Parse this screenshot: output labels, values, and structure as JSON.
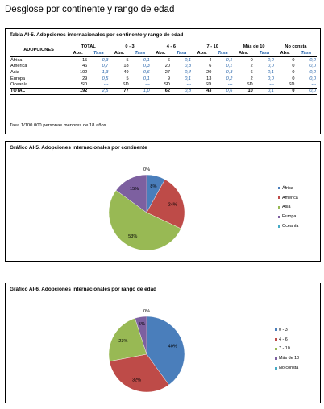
{
  "page_title": "Desglose por continente y rango de edad",
  "table": {
    "title": "Tabla AI-5. Adopciones internacionales por continente y rango de edad",
    "row_header": "ADOPCIONES",
    "groups": [
      "TOTAL",
      "0 - 3",
      "4 - 6",
      "7 - 10",
      "Más de 10",
      "No consta"
    ],
    "subheaders": [
      "Abs.",
      "Tasa"
    ],
    "rows": [
      {
        "label": "África",
        "cells": [
          "15",
          "0,3",
          "5",
          "0,1",
          "6",
          "0,1",
          "4",
          "0,1",
          "0",
          "0,0",
          "0",
          "0,0"
        ]
      },
      {
        "label": "América",
        "cells": [
          "46",
          "0,7",
          "18",
          "0,3",
          "20",
          "0,3",
          "6",
          "0,1",
          "2",
          "0,0",
          "0",
          "0,0"
        ]
      },
      {
        "label": "Asia",
        "cells": [
          "102",
          "1,3",
          "49",
          "0,6",
          "27",
          "0,4",
          "20",
          "0,3",
          "6",
          "0,1",
          "0",
          "0,0"
        ]
      },
      {
        "label": "Europa",
        "cells": [
          "29",
          "0,5",
          "5",
          "0,1",
          "9",
          "0,1",
          "13",
          "0,2",
          "2",
          "0,0",
          "0",
          "0,0"
        ]
      },
      {
        "label": "Oceanía",
        "cells": [
          "SD",
          "---",
          "SD",
          "---",
          "SD",
          "---",
          "SD",
          "---",
          "SD",
          "---",
          "SD",
          "---"
        ]
      }
    ],
    "total": {
      "label": "TOTAL",
      "cells": [
        "192",
        "2,5",
        "77",
        "1,0",
        "62",
        "0,8",
        "43",
        "0,6",
        "10",
        "0,1",
        "0",
        "0,0"
      ]
    },
    "footnote": "Tasa 1/100.000 personas menores de 18 años"
  },
  "chart_data": [
    {
      "type": "pie",
      "title": "Gráfico AI-5. Adopciones internacionales por continente",
      "categories": [
        "África",
        "América",
        "Asia",
        "Europa",
        "Oceanía"
      ],
      "values": [
        8,
        24,
        53,
        15,
        0
      ],
      "labels": [
        "8%",
        "24%",
        "53%",
        "15%",
        "0%"
      ],
      "colors": [
        "#4a7ebb",
        "#be4b48",
        "#98b954",
        "#7d60a0",
        "#46aac5"
      ],
      "legend_position": "right"
    },
    {
      "type": "pie",
      "title": "Gráfico AI-6. Adopciones internacionales por rango de edad",
      "categories": [
        "0 - 3",
        "4 - 6",
        "7 - 10",
        "Más de 10",
        "No consta"
      ],
      "values": [
        40,
        32,
        23,
        5,
        0
      ],
      "labels": [
        "40%",
        "32%",
        "23%",
        "5%",
        "0%"
      ],
      "colors": [
        "#4a7ebb",
        "#be4b48",
        "#98b954",
        "#7d60a0",
        "#46aac5"
      ],
      "legend_position": "right"
    }
  ]
}
